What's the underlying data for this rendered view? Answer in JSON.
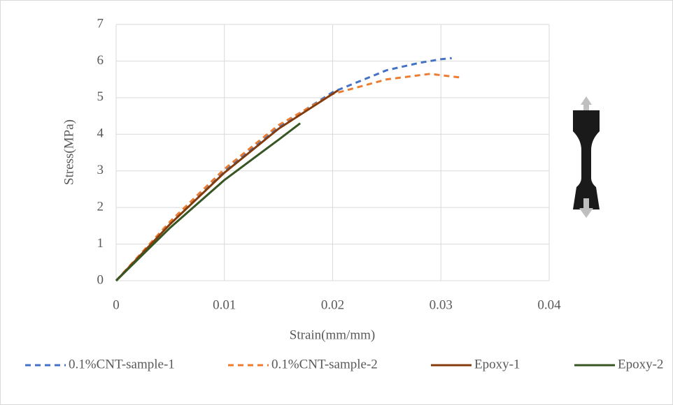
{
  "chart_data": {
    "type": "line",
    "x_label": "Strain(mm/mm)",
    "y_label": "Stress(MPa)",
    "xlim": [
      0,
      0.04
    ],
    "xticks": [
      0,
      0.01,
      0.02,
      0.03,
      0.04
    ],
    "ylim": [
      0,
      7
    ],
    "yticks": [
      0,
      1,
      2,
      3,
      4,
      5,
      6,
      7
    ],
    "grid": true,
    "legend": "bottom",
    "series": [
      {
        "name": "0.1%CNT-sample-1",
        "color": "#4472c4",
        "dash": true,
        "x": [
          0,
          0.005,
          0.01,
          0.015,
          0.02,
          0.025,
          0.028,
          0.03,
          0.031
        ],
        "values": [
          0,
          1.6,
          3.0,
          4.2,
          5.15,
          5.75,
          5.95,
          6.05,
          6.08
        ]
      },
      {
        "name": "0.1%CNT-sample-2",
        "color": "#ed7d31",
        "dash": true,
        "x": [
          0,
          0.005,
          0.01,
          0.015,
          0.02,
          0.025,
          0.029,
          0.0318
        ],
        "values": [
          0,
          1.62,
          3.05,
          4.25,
          5.1,
          5.5,
          5.65,
          5.55
        ]
      },
      {
        "name": "Epoxy-1",
        "color": "#843c0c",
        "dash": false,
        "x": [
          0,
          0.005,
          0.01,
          0.015,
          0.0205
        ],
        "values": [
          0,
          1.55,
          2.95,
          4.15,
          5.2
        ]
      },
      {
        "name": "Epoxy-2",
        "color": "#375623",
        "dash": false,
        "x": [
          0,
          0.005,
          0.01,
          0.015,
          0.017
        ],
        "values": [
          0,
          1.45,
          2.75,
          3.85,
          4.3
        ]
      }
    ]
  }
}
